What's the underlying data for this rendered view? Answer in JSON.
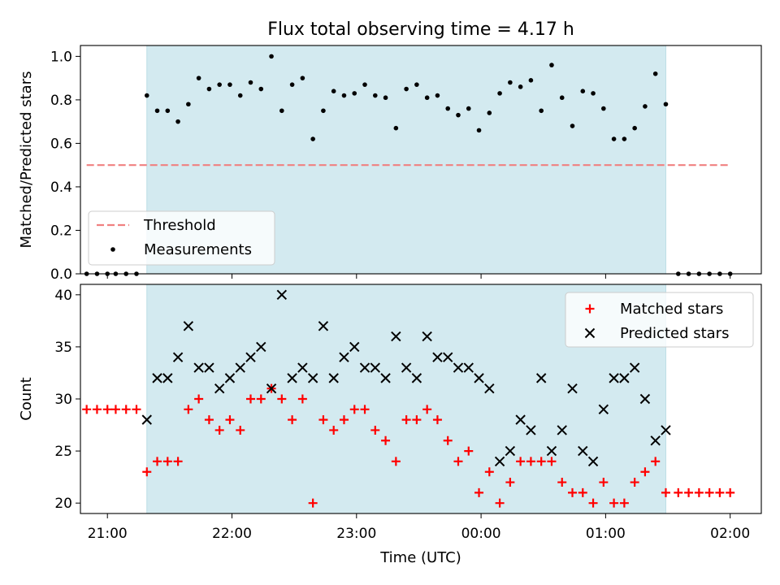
{
  "figure": {
    "title": "Flux total observing time = 4.17 h",
    "xlabel": "Time (UTC)",
    "x_tick_labels": [
      "21:00",
      "22:00",
      "23:00",
      "00:00",
      "01:00",
      "02:00"
    ]
  },
  "chart_data": [
    {
      "type": "scatter",
      "ylabel": "Matched/Predicted stars",
      "xlim": [
        "20:47",
        "02:15"
      ],
      "ylim": [
        0,
        1.05
      ],
      "y_ticks": [
        0.0,
        0.2,
        0.4,
        0.6,
        0.8,
        1.0
      ],
      "grid": false,
      "legend_position": "lower-left",
      "observing_window": {
        "start": "21:19",
        "end": "01:29",
        "color": "#d3eaf0"
      },
      "threshold": {
        "name": "Threshold",
        "value": 0.5,
        "x_start": "20:50",
        "x_end": "02:00",
        "color": "#f08080"
      },
      "series": [
        {
          "name": "Measurements",
          "color": "#000000",
          "points": [
            [
              "20:50",
              0
            ],
            [
              "20:55",
              0
            ],
            [
              "21:00",
              0
            ],
            [
              "21:04",
              0
            ],
            [
              "21:09",
              0
            ],
            [
              "21:14",
              0
            ],
            [
              "21:19",
              0.82
            ],
            [
              "21:24",
              0.75
            ],
            [
              "21:29",
              0.75
            ],
            [
              "21:34",
              0.7
            ],
            [
              "21:39",
              0.78
            ],
            [
              "21:44",
              0.9
            ],
            [
              "21:49",
              0.85
            ],
            [
              "21:54",
              0.87
            ],
            [
              "21:59",
              0.87
            ],
            [
              "22:04",
              0.82
            ],
            [
              "22:09",
              0.88
            ],
            [
              "22:14",
              0.85
            ],
            [
              "22:19",
              1.0
            ],
            [
              "22:24",
              0.75
            ],
            [
              "22:29",
              0.87
            ],
            [
              "22:34",
              0.9
            ],
            [
              "22:39",
              0.62
            ],
            [
              "22:44",
              0.75
            ],
            [
              "22:49",
              0.84
            ],
            [
              "22:54",
              0.82
            ],
            [
              "22:59",
              0.83
            ],
            [
              "23:04",
              0.87
            ],
            [
              "23:09",
              0.82
            ],
            [
              "23:14",
              0.81
            ],
            [
              "23:19",
              0.67
            ],
            [
              "23:24",
              0.85
            ],
            [
              "23:29",
              0.87
            ],
            [
              "23:34",
              0.81
            ],
            [
              "23:39",
              0.82
            ],
            [
              "23:44",
              0.76
            ],
            [
              "23:49",
              0.73
            ],
            [
              "23:54",
              0.76
            ],
            [
              "23:59",
              0.66
            ],
            [
              "00:04",
              0.74
            ],
            [
              "00:09",
              0.83
            ],
            [
              "00:14",
              0.88
            ],
            [
              "00:19",
              0.86
            ],
            [
              "00:24",
              0.89
            ],
            [
              "00:29",
              0.75
            ],
            [
              "00:34",
              0.96
            ],
            [
              "00:39",
              0.81
            ],
            [
              "00:44",
              0.68
            ],
            [
              "00:49",
              0.84
            ],
            [
              "00:54",
              0.83
            ],
            [
              "00:59",
              0.76
            ],
            [
              "01:04",
              0.62
            ],
            [
              "01:09",
              0.62
            ],
            [
              "01:14",
              0.67
            ],
            [
              "01:19",
              0.77
            ],
            [
              "01:24",
              0.92
            ],
            [
              "01:29",
              0.78
            ],
            [
              "01:35",
              0
            ],
            [
              "01:40",
              0
            ],
            [
              "01:45",
              0
            ],
            [
              "01:50",
              0
            ],
            [
              "01:55",
              0
            ],
            [
              "02:00",
              0
            ]
          ]
        }
      ]
    },
    {
      "type": "scatter",
      "ylabel": "Count",
      "xlabel": "Time (UTC)",
      "xlim": [
        "20:47",
        "02:15"
      ],
      "ylim": [
        19,
        41
      ],
      "y_ticks": [
        20,
        25,
        30,
        35,
        40
      ],
      "grid": false,
      "legend_position": "upper-right",
      "observing_window": {
        "start": "21:19",
        "end": "01:29",
        "color": "#d3eaf0"
      },
      "series": [
        {
          "name": "Matched stars",
          "marker": "plus",
          "color": "#ff0000",
          "points": [
            [
              "20:50",
              29
            ],
            [
              "20:55",
              29
            ],
            [
              "21:00",
              29
            ],
            [
              "21:04",
              29
            ],
            [
              "21:09",
              29
            ],
            [
              "21:14",
              29
            ],
            [
              "21:19",
              23
            ],
            [
              "21:24",
              24
            ],
            [
              "21:29",
              24
            ],
            [
              "21:34",
              24
            ],
            [
              "21:39",
              29
            ],
            [
              "21:44",
              30
            ],
            [
              "21:49",
              28
            ],
            [
              "21:54",
              27
            ],
            [
              "21:59",
              28
            ],
            [
              "22:04",
              27
            ],
            [
              "22:09",
              30
            ],
            [
              "22:14",
              30
            ],
            [
              "22:19",
              31
            ],
            [
              "22:24",
              30
            ],
            [
              "22:29",
              28
            ],
            [
              "22:34",
              30
            ],
            [
              "22:39",
              20
            ],
            [
              "22:44",
              28
            ],
            [
              "22:49",
              27
            ],
            [
              "22:54",
              28
            ],
            [
              "22:59",
              29
            ],
            [
              "23:04",
              29
            ],
            [
              "23:09",
              27
            ],
            [
              "23:14",
              26
            ],
            [
              "23:19",
              24
            ],
            [
              "23:24",
              28
            ],
            [
              "23:29",
              28
            ],
            [
              "23:34",
              29
            ],
            [
              "23:39",
              28
            ],
            [
              "23:44",
              26
            ],
            [
              "23:49",
              24
            ],
            [
              "23:54",
              25
            ],
            [
              "23:59",
              21
            ],
            [
              "00:04",
              23
            ],
            [
              "00:09",
              20
            ],
            [
              "00:14",
              22
            ],
            [
              "00:19",
              24
            ],
            [
              "00:24",
              24
            ],
            [
              "00:29",
              24
            ],
            [
              "00:34",
              24
            ],
            [
              "00:39",
              22
            ],
            [
              "00:44",
              21
            ],
            [
              "00:49",
              21
            ],
            [
              "00:54",
              20
            ],
            [
              "00:59",
              22
            ],
            [
              "01:04",
              20
            ],
            [
              "01:09",
              20
            ],
            [
              "01:14",
              22
            ],
            [
              "01:19",
              23
            ],
            [
              "01:24",
              24
            ],
            [
              "01:29",
              21
            ],
            [
              "01:35",
              21
            ],
            [
              "01:40",
              21
            ],
            [
              "01:45",
              21
            ],
            [
              "01:50",
              21
            ],
            [
              "01:55",
              21
            ],
            [
              "02:00",
              21
            ]
          ]
        },
        {
          "name": "Predicted stars",
          "marker": "x",
          "color": "#000000",
          "points": [
            [
              "21:19",
              28
            ],
            [
              "21:24",
              32
            ],
            [
              "21:29",
              32
            ],
            [
              "21:34",
              34
            ],
            [
              "21:39",
              37
            ],
            [
              "21:44",
              33
            ],
            [
              "21:49",
              33
            ],
            [
              "21:54",
              31
            ],
            [
              "21:59",
              32
            ],
            [
              "22:04",
              33
            ],
            [
              "22:09",
              34
            ],
            [
              "22:14",
              35
            ],
            [
              "22:19",
              31
            ],
            [
              "22:24",
              40
            ],
            [
              "22:29",
              32
            ],
            [
              "22:34",
              33
            ],
            [
              "22:39",
              32
            ],
            [
              "22:44",
              37
            ],
            [
              "22:49",
              32
            ],
            [
              "22:54",
              34
            ],
            [
              "22:59",
              35
            ],
            [
              "23:04",
              33
            ],
            [
              "23:09",
              33
            ],
            [
              "23:14",
              32
            ],
            [
              "23:19",
              36
            ],
            [
              "23:24",
              33
            ],
            [
              "23:29",
              32
            ],
            [
              "23:34",
              36
            ],
            [
              "23:39",
              34
            ],
            [
              "23:44",
              34
            ],
            [
              "23:49",
              33
            ],
            [
              "23:54",
              33
            ],
            [
              "23:59",
              32
            ],
            [
              "00:04",
              31
            ],
            [
              "00:09",
              24
            ],
            [
              "00:14",
              25
            ],
            [
              "00:19",
              28
            ],
            [
              "00:24",
              27
            ],
            [
              "00:29",
              32
            ],
            [
              "00:34",
              25
            ],
            [
              "00:39",
              27
            ],
            [
              "00:44",
              31
            ],
            [
              "00:49",
              25
            ],
            [
              "00:54",
              24
            ],
            [
              "00:59",
              29
            ],
            [
              "01:04",
              32
            ],
            [
              "01:09",
              32
            ],
            [
              "01:14",
              33
            ],
            [
              "01:19",
              30
            ],
            [
              "01:24",
              26
            ],
            [
              "01:29",
              27
            ]
          ]
        }
      ]
    }
  ]
}
